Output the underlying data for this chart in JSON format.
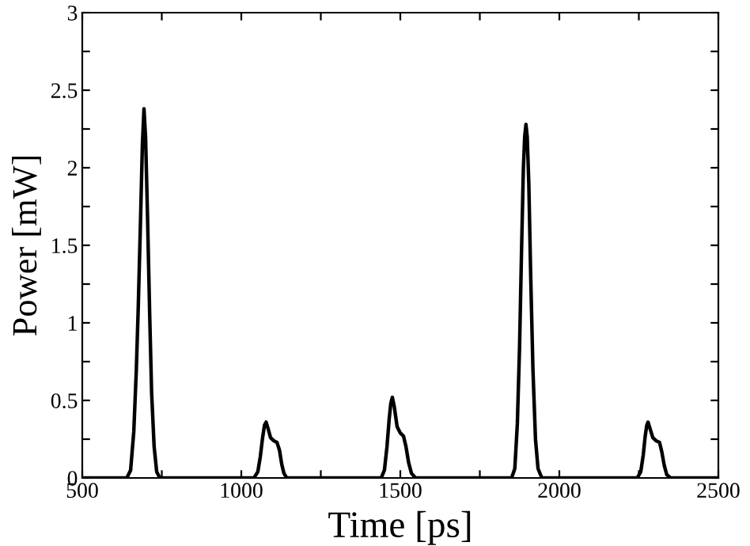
{
  "chart_data": {
    "type": "line",
    "xlabel": "Time [ps]",
    "ylabel": "Power [mW]",
    "xlim": [
      500,
      2500
    ],
    "ylim": [
      0,
      3
    ],
    "xticks": [
      500,
      {
        "value": 750,
        "label": null
      },
      1000,
      {
        "value": 1250,
        "label": null
      },
      1500,
      {
        "value": 1750,
        "label": null
      },
      2000,
      {
        "value": 2250,
        "label": null
      },
      2500
    ],
    "yticks": [
      0,
      {
        "value": 0.25,
        "label": null
      },
      0.5,
      {
        "value": 0.75,
        "label": null
      },
      1,
      {
        "value": 1.25,
        "label": null
      },
      1.5,
      {
        "value": 1.75,
        "label": null
      },
      2,
      {
        "value": 2.25,
        "label": null
      },
      2.5,
      {
        "value": 2.75,
        "label": null
      },
      3
    ],
    "grid": false,
    "legend": false,
    "marker": "none",
    "line_style": "solid",
    "series": [
      {
        "color": "#000000",
        "x": [
          500,
          640,
          652,
          662,
          670,
          676,
          683,
          689,
          694,
          699,
          705,
          712,
          718,
          726,
          734,
          744,
          1040,
          1052,
          1060,
          1067,
          1073,
          1078,
          1084,
          1092,
          1102,
          1112,
          1120,
          1127,
          1134,
          1143,
          1440,
          1450,
          1458,
          1465,
          1470,
          1475,
          1481,
          1490,
          1500,
          1510,
          1518,
          1526,
          1535,
          1548,
          1850,
          1860,
          1868,
          1875,
          1881,
          1887,
          1891,
          1895,
          1899,
          1904,
          1910,
          1917,
          1925,
          1933,
          1945,
          2245,
          2256,
          2264,
          2270,
          2275,
          2279,
          2285,
          2294,
          2304,
          2315,
          2322,
          2330,
          2338,
          2350,
          2500
        ],
        "values": [
          0,
          0,
          0.05,
          0.3,
          0.7,
          1.1,
          1.65,
          2.15,
          2.38,
          2.2,
          1.7,
          1.05,
          0.55,
          0.2,
          0.04,
          0,
          0,
          0.04,
          0.14,
          0.26,
          0.34,
          0.36,
          0.32,
          0.26,
          0.24,
          0.23,
          0.18,
          0.09,
          0.03,
          0,
          0,
          0.05,
          0.2,
          0.38,
          0.48,
          0.52,
          0.46,
          0.33,
          0.29,
          0.27,
          0.2,
          0.1,
          0.03,
          0,
          0,
          0.06,
          0.35,
          0.85,
          1.45,
          2.0,
          2.2,
          2.28,
          2.2,
          1.9,
          1.3,
          0.7,
          0.25,
          0.06,
          0,
          0,
          0.04,
          0.15,
          0.27,
          0.34,
          0.36,
          0.32,
          0.26,
          0.24,
          0.23,
          0.17,
          0.08,
          0.02,
          0,
          0
        ]
      }
    ]
  }
}
